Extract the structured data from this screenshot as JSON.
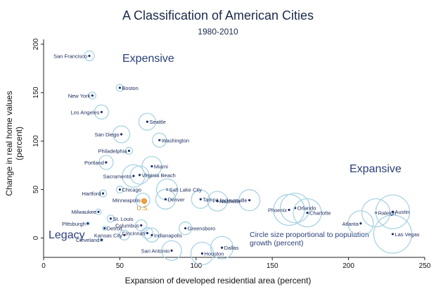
{
  "chart_data": {
    "type": "scatter",
    "title": "A Classification of American Cities",
    "subtitle": "1980-2010",
    "xlabel": "Expansion of developed residential area (percent)",
    "ylabel": "Change in real home values (percent)",
    "xlim": [
      0,
      250
    ],
    "ylim": [
      -20,
      205
    ],
    "xticks": [
      0,
      50,
      100,
      150,
      200,
      250
    ],
    "yticks": [
      0,
      50,
      100,
      150,
      200
    ],
    "annotations": {
      "expensive": "Expensive",
      "expansive": "Expansive",
      "legacy": "Legacy"
    },
    "note": "Circle size proportional to population growth (percent)",
    "points": [
      {
        "name": "San Francisco",
        "x": 30,
        "y": 188,
        "growth": 7,
        "label_side": "left"
      },
      {
        "name": "Boston",
        "x": 50,
        "y": 155,
        "growth": 5,
        "label_side": "right"
      },
      {
        "name": "New York",
        "x": 32,
        "y": 147,
        "growth": 5,
        "label_side": "left"
      },
      {
        "name": "Los Angeles",
        "x": 38,
        "y": 130,
        "growth": 10,
        "label_side": "left"
      },
      {
        "name": "Seattle",
        "x": 68,
        "y": 120,
        "growth": 12,
        "label_side": "right"
      },
      {
        "name": "San Diego",
        "x": 51,
        "y": 107,
        "growth": 12,
        "label_side": "left"
      },
      {
        "name": "Washington",
        "x": 76,
        "y": 101,
        "growth": 10,
        "label_side": "right"
      },
      {
        "name": "Philadelphia",
        "x": 56,
        "y": 90,
        "growth": 5,
        "label_side": "left"
      },
      {
        "name": "Portland",
        "x": 41,
        "y": 78,
        "growth": 10,
        "label_side": "left"
      },
      {
        "name": "Miami",
        "x": 71,
        "y": 74,
        "growth": 14,
        "label_side": "right"
      },
      {
        "name": "Sacramento",
        "x": 59,
        "y": 64,
        "growth": 16,
        "label_side": "left"
      },
      {
        "name": "Virginia Beach",
        "x": 63,
        "y": 65,
        "growth": 13,
        "label_side": "right"
      },
      {
        "name": "Salt Lake City",
        "x": 81,
        "y": 50,
        "growth": 15,
        "label_side": "right"
      },
      {
        "name": "Hartford",
        "x": 39,
        "y": 46,
        "growth": 5,
        "label_side": "left"
      },
      {
        "name": "Chicago",
        "x": 50,
        "y": 50,
        "growth": 5,
        "label_side": "right"
      },
      {
        "name": "Minneapolis",
        "x": 65,
        "y": 39,
        "growth": 10,
        "label_side": "left"
      },
      {
        "name": "Denver",
        "x": 80,
        "y": 40,
        "growth": 14,
        "label_side": "right"
      },
      {
        "name": "Tampa",
        "x": 103,
        "y": 40,
        "growth": 13,
        "label_side": "right"
      },
      {
        "name": "Nashville",
        "x": 114,
        "y": 38,
        "growth": 14,
        "label_side": "right"
      },
      {
        "name": "Jacksonville",
        "x": 135,
        "y": 39,
        "growth": 15,
        "label_side": "left"
      },
      {
        "name": "Orlando",
        "x": 165,
        "y": 31,
        "growth": 21,
        "label_side": "right"
      },
      {
        "name": "Phoenix",
        "x": 161,
        "y": 29,
        "growth": 22,
        "label_side": "left"
      },
      {
        "name": "Charlotte",
        "x": 173,
        "y": 26,
        "growth": 20,
        "label_side": "right"
      },
      {
        "name": "Milwaukee",
        "x": 36,
        "y": 27,
        "growth": 4,
        "label_side": "left"
      },
      {
        "name": "St. Louis",
        "x": 44,
        "y": 20,
        "growth": 5,
        "label_side": "right"
      },
      {
        "name": "Pittsburgh",
        "x": 29,
        "y": 15,
        "growth": 2,
        "label_side": "left"
      },
      {
        "name": "Detroit",
        "x": 40,
        "y": 10,
        "growth": 3,
        "label_side": "right"
      },
      {
        "name": "Columbus",
        "x": 64,
        "y": 13,
        "growth": 8,
        "label_side": "left"
      },
      {
        "name": "Cincinnati",
        "x": 68,
        "y": 5,
        "growth": 8,
        "label_side": "left"
      },
      {
        "name": "Indianapolis",
        "x": 71,
        "y": 3,
        "growth": 10,
        "label_side": "right"
      },
      {
        "name": "Greensboro",
        "x": 93,
        "y": 10,
        "growth": 9,
        "label_side": "right"
      },
      {
        "name": "Cleveland",
        "x": 38,
        "y": -2,
        "growth": 2,
        "label_side": "left"
      },
      {
        "name": "Kansas City",
        "x": 53,
        "y": 3,
        "growth": 7,
        "label_side": "left"
      },
      {
        "name": "San Antonio",
        "x": 84,
        "y": -13,
        "growth": 14,
        "label_side": "left"
      },
      {
        "name": "Houston",
        "x": 104,
        "y": -16,
        "growth": 16,
        "label_side": "right"
      },
      {
        "name": "Dallas",
        "x": 117,
        "y": -10,
        "growth": 16,
        "label_side": "right"
      },
      {
        "name": "Atlanta",
        "x": 208,
        "y": 15,
        "growth": 18,
        "label_side": "left"
      },
      {
        "name": "Raleigh",
        "x": 218,
        "y": 26,
        "growth": 20,
        "label_side": "right"
      },
      {
        "name": "Austin",
        "x": 229,
        "y": 27,
        "growth": 24,
        "label_side": "right"
      },
      {
        "name": "Las Vegas",
        "x": 229,
        "y": 4,
        "growth": 27,
        "label_side": "right"
      }
    ],
    "reference": {
      "name": "U.S.",
      "x": 66,
      "y": 38
    }
  }
}
